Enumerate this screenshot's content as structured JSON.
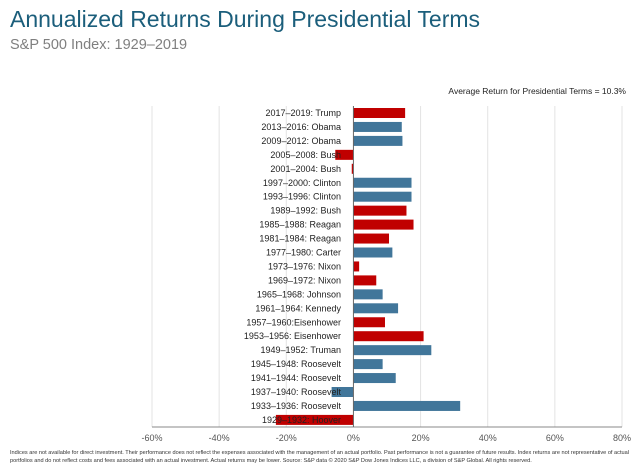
{
  "header": {
    "title": "Annualized Returns During Presidential Terms",
    "subtitle": "S&P 500 Index: 1929–2019",
    "average_note": "Average Return for Presidential Terms = 10.3%"
  },
  "footer": "Indices are not available for direct investment. Their performance does not reflect the expenses associated with the management of an actual portfolio. Past performance is not a guarantee of future results. Index returns are not representative of actual portfolios and do not reflect costs and fees associated with an actual investment. Actual returns may be lower. Source: S&P data © 2020 S&P Dow Jones Indices LLC, a division of S&P Global. All rights reserved.",
  "chart_data": {
    "type": "bar",
    "orientation": "horizontal",
    "title": "Annualized Returns During Presidential Terms",
    "subtitle": "S&P 500 Index: 1929–2019",
    "xlabel": "",
    "ylabel": "",
    "xlim": [
      -60,
      80
    ],
    "x_ticks": [
      "-60%",
      "-40%",
      "-20%",
      "0%",
      "20%",
      "40%",
      "60%",
      "80%"
    ],
    "x_tick_values": [
      -60,
      -40,
      -20,
      0,
      20,
      40,
      60,
      80
    ],
    "grid": true,
    "colors": {
      "Republican": "#c00000",
      "Democrat": "#41769a"
    },
    "categories": [
      "2017–2019: Trump",
      "2013–2016: Obama",
      "2009–2012: Obama",
      "2005–2008: Bush",
      "2001–2004: Bush",
      "1997–2000: Clinton",
      "1993–1996: Clinton",
      "1989–1992: Bush",
      "1985–1988: Reagan",
      "1981–1984: Reagan",
      "1977–1980: Carter",
      "1973–1976: Nixon",
      "1969–1972: Nixon",
      "1965–1968: Johnson",
      "1961–1964: Kennedy",
      "1957–1960:Eisenhower",
      "1953–1956: Eisenhower",
      "1949–1952: Truman",
      "1945–1948: Roosevelt",
      "1941–1944: Roosevelt",
      "1937–1940: Roosevelt",
      "1933–1936: Roosevelt",
      "1929–1932: Hoover"
    ],
    "values": [
      15.4,
      14.4,
      14.6,
      -5.4,
      -0.5,
      17.3,
      17.3,
      15.8,
      17.9,
      10.6,
      11.6,
      1.7,
      6.8,
      8.7,
      13.3,
      9.4,
      20.9,
      23.2,
      8.7,
      12.6,
      -6.5,
      31.8,
      -23.1
    ],
    "party": [
      "Republican",
      "Democrat",
      "Democrat",
      "Republican",
      "Republican",
      "Democrat",
      "Democrat",
      "Republican",
      "Republican",
      "Republican",
      "Democrat",
      "Republican",
      "Republican",
      "Democrat",
      "Democrat",
      "Republican",
      "Republican",
      "Democrat",
      "Democrat",
      "Democrat",
      "Democrat",
      "Democrat",
      "Republican"
    ]
  }
}
